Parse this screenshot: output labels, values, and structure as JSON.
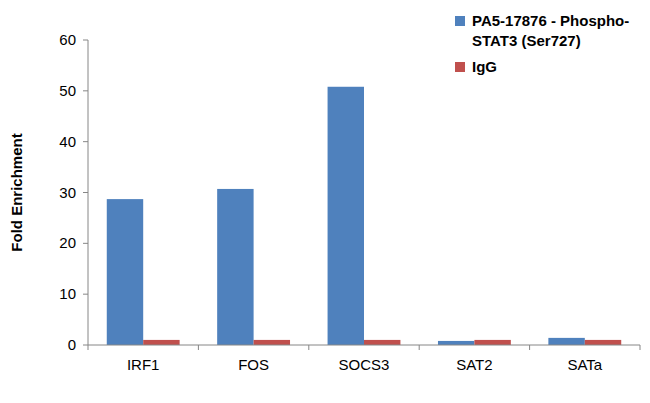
{
  "chart_data": {
    "type": "bar",
    "y_label": "Fold Enrichment",
    "categories": [
      "IRF1",
      "FOS",
      "SOCS3",
      "SAT2",
      "SATa"
    ],
    "series": [
      {
        "name": "PA5-17876 - Phospho-STAT3 (Ser727)",
        "color": "#4f81bd",
        "values": [
          28.7,
          30.7,
          50.8,
          0.8,
          1.4
        ]
      },
      {
        "name": "IgG",
        "color": "#c0504d",
        "values": [
          1,
          1,
          1,
          1,
          1
        ]
      }
    ],
    "ylim": [
      0,
      60
    ],
    "yticks": [
      0,
      10,
      20,
      30,
      40,
      50,
      60
    ],
    "grid": false,
    "legend": "upper right"
  }
}
